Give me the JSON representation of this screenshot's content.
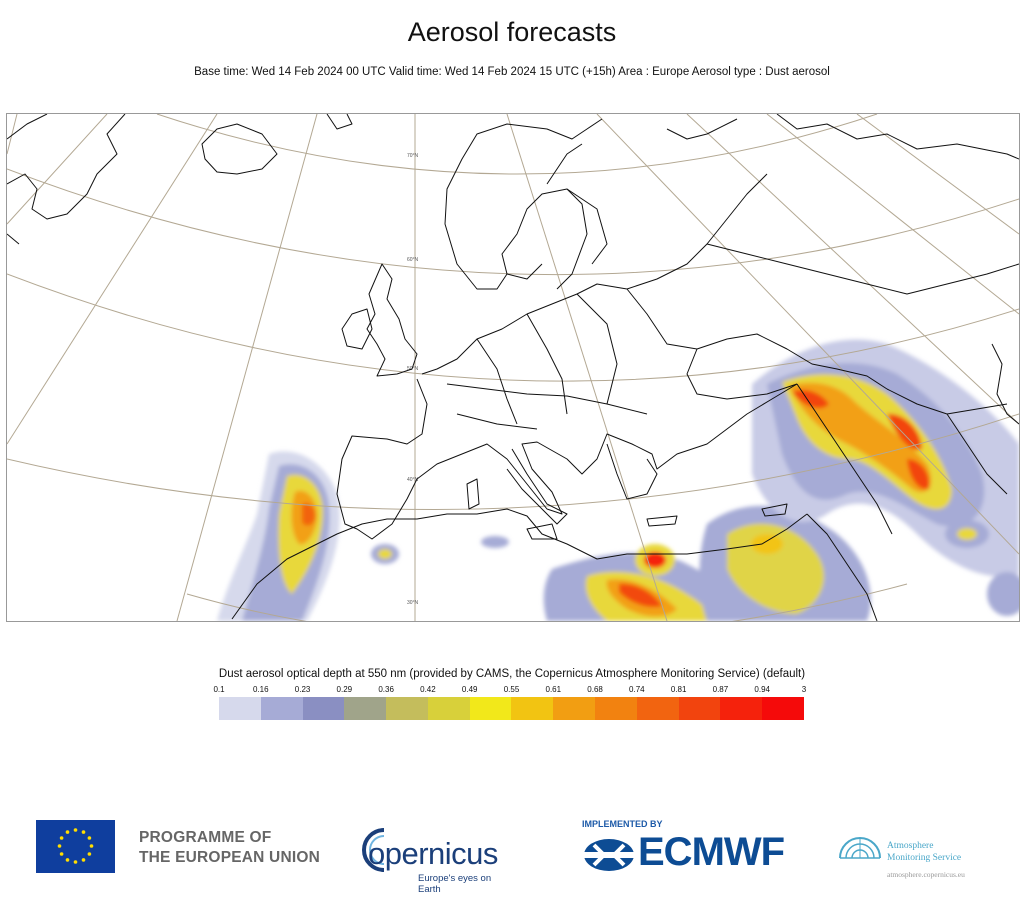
{
  "header": {
    "title": "Aerosol forecasts",
    "subtitle": "Base time: Wed 14 Feb 2024 00 UTC Valid time: Wed 14 Feb 2024 15 UTC (+15h) Area : Europe Aerosol type : Dust aerosol"
  },
  "map": {
    "latitude_labels": [
      "70°N",
      "60°N",
      "50°N",
      "40°N",
      "30°N"
    ],
    "gridline_color": "#b3a893",
    "coastline_color": "#111111"
  },
  "legend": {
    "title": "Dust aerosol optical depth at 550 nm (provided by CAMS, the Copernicus Atmosphere Monitoring Service) (default)",
    "ticks": [
      "0.1",
      "0.16",
      "0.23",
      "0.29",
      "0.36",
      "0.42",
      "0.49",
      "0.55",
      "0.61",
      "0.68",
      "0.74",
      "0.81",
      "0.87",
      "0.94",
      "3"
    ],
    "colors": [
      "#d6d9ec",
      "#a6abd6",
      "#8a8fc2",
      "#a0a48a",
      "#c4bd5c",
      "#d8d03a",
      "#f2e81a",
      "#f2c412",
      "#f29e12",
      "#f28210",
      "#f26410",
      "#f2440e",
      "#f5220c",
      "#f50a0a"
    ]
  },
  "footer": {
    "eu_line1": "PROGRAMME OF",
    "eu_line2": "THE EUROPEAN UNION",
    "copernicus_name": "opernicus",
    "copernicus_tagline": "Europe's eyes on Earth",
    "implemented_by": "IMPLEMENTED BY",
    "ecmwf_name": "ECMWF",
    "ams_line1": "Atmosphere",
    "ams_line2": "Monitoring Service",
    "ams_url": "atmosphere.copernicus.eu"
  }
}
